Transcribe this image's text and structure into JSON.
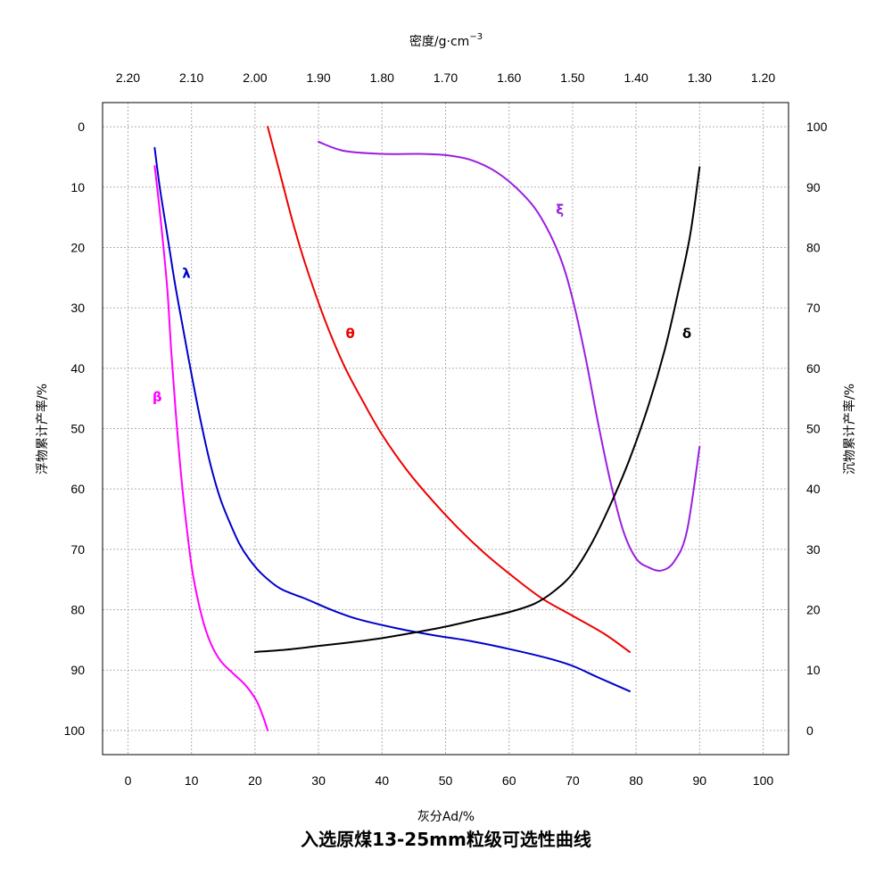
{
  "chart_data": {
    "type": "line",
    "title": "入选原煤13-25mm粒级可选性曲线",
    "xlabel": "灰分Ad/%",
    "x2label_main": "密度/g·cm",
    "x2label_sup": "−3",
    "ylabel_left": "浮物累计产率/%",
    "ylabel_right": "沉物累计产率/%",
    "xlim": [
      -4,
      104
    ],
    "xticks": [
      "0",
      "10",
      "20",
      "30",
      "40",
      "50",
      "60",
      "70",
      "80",
      "90",
      "100"
    ],
    "x2lim": [
      2.24,
      1.16
    ],
    "x2ticks": [
      "2.20",
      "2.10",
      "2.00",
      "1.90",
      "1.80",
      "1.70",
      "1.60",
      "1.50",
      "1.40",
      "1.30",
      "1.20"
    ],
    "ylim_left": [
      -4,
      104
    ],
    "yticks_left": [
      "0",
      "10",
      "20",
      "30",
      "40",
      "50",
      "60",
      "70",
      "80",
      "90",
      "100"
    ],
    "ylim_right": [
      104,
      -4
    ],
    "yticks_right": [
      "100",
      "90",
      "80",
      "70",
      "60",
      "50",
      "40",
      "30",
      "20",
      "10",
      "0"
    ],
    "grid": true,
    "series": [
      {
        "name": "λ",
        "color": "#0000cc",
        "axis": "x-ash / y-left",
        "label_at": [
          9.2,
          25
        ],
        "points": [
          [
            4.2,
            3.5
          ],
          [
            5.0,
            10
          ],
          [
            6.2,
            18
          ],
          [
            7.4,
            26
          ],
          [
            8.6,
            33
          ],
          [
            10,
            41
          ],
          [
            11.5,
            49
          ],
          [
            13,
            56
          ],
          [
            14.5,
            61.5
          ],
          [
            16,
            65.5
          ],
          [
            17.5,
            69
          ],
          [
            19,
            71.5
          ],
          [
            21,
            74
          ],
          [
            24,
            76.5
          ],
          [
            28,
            78.2
          ],
          [
            32,
            80
          ],
          [
            36,
            81.5
          ],
          [
            42,
            83
          ],
          [
            48,
            84.2
          ],
          [
            54,
            85.2
          ],
          [
            60,
            86.5
          ],
          [
            66,
            88
          ],
          [
            70,
            89.3
          ],
          [
            74,
            91.2
          ],
          [
            79,
            93.5
          ]
        ]
      },
      {
        "name": "β",
        "color": "#ff00ff",
        "axis": "x-ash / y-left",
        "label_at": [
          4.6,
          45.5
        ],
        "points": [
          [
            4.2,
            6.5
          ],
          [
            4.8,
            12
          ],
          [
            5.4,
            18
          ],
          [
            6.2,
            27
          ],
          [
            6.8,
            37
          ],
          [
            7.5,
            47
          ],
          [
            8.3,
            57
          ],
          [
            9.2,
            66
          ],
          [
            10.2,
            74
          ],
          [
            11.6,
            81
          ],
          [
            13,
            85.5
          ],
          [
            14.6,
            88.5
          ],
          [
            16.5,
            90.5
          ],
          [
            18.5,
            92.5
          ],
          [
            20.2,
            95
          ],
          [
            21.2,
            97.5
          ],
          [
            22,
            100
          ]
        ]
      },
      {
        "name": "θ",
        "color": "#ee0000",
        "axis": "x-ash / y-left",
        "label_at": [
          35,
          35
        ],
        "points": [
          [
            22,
            0
          ],
          [
            24,
            8
          ],
          [
            26,
            16
          ],
          [
            28,
            23
          ],
          [
            31,
            32
          ],
          [
            34,
            39.5
          ],
          [
            37,
            45.5
          ],
          [
            40,
            51
          ],
          [
            44,
            57
          ],
          [
            48,
            62
          ],
          [
            52,
            66.5
          ],
          [
            56,
            70.5
          ],
          [
            60,
            74
          ],
          [
            65,
            78
          ],
          [
            70,
            81
          ],
          [
            75,
            84
          ],
          [
            79,
            87
          ]
        ]
      },
      {
        "name": "ξ",
        "color": "#9a1fe0",
        "axis": "x-ash / y-right",
        "label_at": [
          68,
          85.5
        ],
        "points": [
          [
            30,
            97.5
          ],
          [
            34,
            96
          ],
          [
            40,
            95.5
          ],
          [
            46,
            95.5
          ],
          [
            50,
            95.3
          ],
          [
            54,
            94.5
          ],
          [
            58,
            92.5
          ],
          [
            62,
            89
          ],
          [
            65,
            85
          ],
          [
            68,
            78.5
          ],
          [
            70,
            71.5
          ],
          [
            72,
            62
          ],
          [
            74,
            51
          ],
          [
            76,
            41
          ],
          [
            78,
            33
          ],
          [
            80,
            28.5
          ],
          [
            82,
            27
          ],
          [
            84,
            26.5
          ],
          [
            86,
            28
          ],
          [
            88,
            33
          ],
          [
            90,
            47
          ]
        ]
      },
      {
        "name": "δ",
        "color": "#000000",
        "axis": "x-ash / y-right",
        "label_at": [
          88,
          65
        ],
        "points": [
          [
            20,
            13
          ],
          [
            25,
            13.4
          ],
          [
            30,
            14
          ],
          [
            35,
            14.6
          ],
          [
            40,
            15.3
          ],
          [
            45,
            16.2
          ],
          [
            50,
            17.2
          ],
          [
            55,
            18.4
          ],
          [
            60,
            19.6
          ],
          [
            64,
            21
          ],
          [
            67,
            23
          ],
          [
            70,
            26
          ],
          [
            73,
            31
          ],
          [
            76,
            37.5
          ],
          [
            79,
            45
          ],
          [
            82,
            54
          ],
          [
            84.5,
            63
          ],
          [
            86.5,
            72
          ],
          [
            88.5,
            82
          ],
          [
            90,
            93.3
          ]
        ]
      }
    ]
  }
}
